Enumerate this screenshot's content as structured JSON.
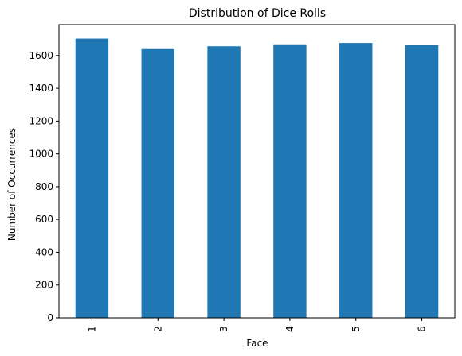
{
  "chart_data": {
    "type": "bar",
    "title": "Distribution of Dice Rolls",
    "xlabel": "Face",
    "ylabel": "Number of Occurrences",
    "categories": [
      "1",
      "2",
      "3",
      "4",
      "5",
      "6"
    ],
    "values": [
      1703,
      1639,
      1656,
      1668,
      1676,
      1665
    ],
    "ylim": [
      0,
      1788
    ],
    "yticks": [
      0,
      200,
      400,
      600,
      800,
      1000,
      1200,
      1400,
      1600
    ],
    "bar_color": "#1f77b4",
    "grid": false,
    "legend": "none"
  }
}
